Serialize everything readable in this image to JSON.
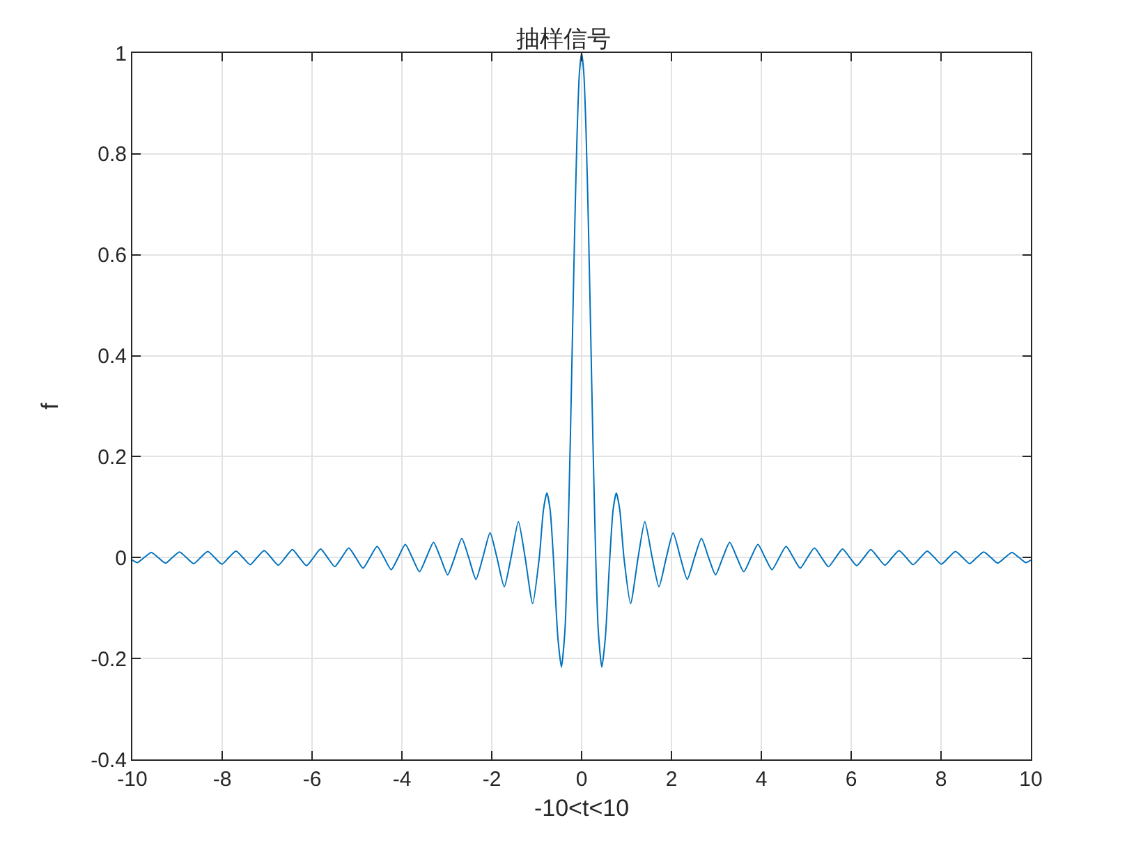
{
  "chart_data": {
    "type": "line",
    "title": "抽样信号",
    "xlabel": "-10<t<10",
    "ylabel": "f",
    "x": [
      -10,
      -9.891,
      -9.739,
      -9.577,
      -9.425,
      -9.263,
      -9.111,
      -8.949,
      -8.796,
      -8.635,
      -8.482,
      -8.321,
      -8.168,
      -8.007,
      -7.854,
      -7.693,
      -7.54,
      -7.379,
      -7.226,
      -7.065,
      -6.912,
      -6.751,
      -6.597,
      -6.437,
      -6.283,
      -6.123,
      -5.969,
      -5.809,
      -5.655,
      -5.495,
      -5.341,
      -5.181,
      -5.027,
      -4.866,
      -4.712,
      -4.552,
      -4.398,
      -4.238,
      -4.084,
      -3.924,
      -3.77,
      -3.61,
      -3.456,
      -3.296,
      -3.142,
      -2.981,
      -2.827,
      -2.667,
      -2.513,
      -2.352,
      -2.199,
      -2.037,
      -1.885,
      -1.722,
      -1.571,
      -1.407,
      -1.257,
      -1.09,
      -0.942,
      -0.85,
      -0.773,
      -0.7,
      -0.628,
      -0.53,
      -0.449,
      -0.37,
      -0.314,
      -0.25,
      -0.2,
      -0.15,
      -0.1,
      -0.05,
      0,
      0.05,
      0.1,
      0.15,
      0.2,
      0.25,
      0.314,
      0.37,
      0.449,
      0.53,
      0.628,
      0.7,
      0.773,
      0.85,
      0.942,
      1.09,
      1.257,
      1.407,
      1.571,
      1.722,
      1.885,
      2.037,
      2.199,
      2.352,
      2.513,
      2.667,
      2.827,
      2.981,
      3.142,
      3.296,
      3.456,
      3.61,
      3.77,
      3.924,
      4.084,
      4.238,
      4.398,
      4.552,
      4.712,
      4.866,
      5.027,
      5.181,
      5.341,
      5.495,
      5.655,
      5.809,
      5.969,
      6.123,
      6.283,
      6.437,
      6.597,
      6.751,
      6.912,
      7.065,
      7.226,
      7.379,
      7.54,
      7.693,
      7.854,
      8.007,
      8.168,
      8.321,
      8.482,
      8.635,
      8.796,
      8.949,
      9.111,
      9.263,
      9.425,
      9.577,
      9.739,
      9.891,
      10
    ],
    "series": [
      {
        "color": "#0072bd",
        "values": [
          -0.005,
          -0.01,
          0,
          0.01,
          0,
          -0.011,
          0,
          0.011,
          0,
          -0.012,
          0,
          0.012,
          0,
          -0.013,
          0,
          0.013,
          0,
          -0.014,
          0,
          0.014,
          0,
          -0.015,
          0,
          0.016,
          0,
          -0.016,
          0,
          0.017,
          0,
          -0.018,
          0,
          0.019,
          0,
          -0.021,
          0,
          0.022,
          0,
          -0.024,
          0,
          0.026,
          0,
          -0.028,
          0,
          0.03,
          0,
          -0.034,
          0,
          0.038,
          0,
          -0.043,
          0,
          0.049,
          0,
          -0.058,
          0,
          0.071,
          0,
          -0.091,
          0,
          0.094,
          0.128,
          0.094,
          0,
          -0.157,
          -0.217,
          -0.143,
          0,
          0.239,
          0.455,
          0.665,
          0.841,
          0.959,
          1,
          0.959,
          0.841,
          0.665,
          0.455,
          0.239,
          0,
          -0.143,
          -0.217,
          -0.157,
          0,
          0.094,
          0.128,
          0.094,
          0,
          -0.091,
          0,
          0.071,
          0,
          -0.058,
          0,
          0.049,
          0,
          -0.043,
          0,
          0.038,
          0,
          -0.034,
          0,
          0.03,
          0,
          -0.028,
          0,
          0.026,
          0,
          -0.024,
          0,
          0.022,
          0,
          -0.021,
          0,
          0.019,
          0,
          -0.018,
          0,
          0.017,
          0,
          -0.016,
          0,
          0.016,
          0,
          -0.015,
          0,
          0.014,
          0,
          -0.014,
          0,
          0.013,
          0,
          -0.013,
          0,
          0.012,
          0,
          -0.012,
          0,
          0.011,
          0,
          -0.011,
          0,
          0.01,
          0,
          -0.01,
          -0.005
        ]
      }
    ],
    "xlim": [
      -10,
      10
    ],
    "xticks": [
      -10,
      -8,
      -6,
      -4,
      -2,
      0,
      2,
      4,
      6,
      8,
      10
    ],
    "ylim": [
      -0.4,
      1
    ],
    "yticks": [
      -0.4,
      -0.2,
      0,
      0.2,
      0.4,
      0.6,
      0.8,
      1
    ],
    "grid": true,
    "legend": false
  }
}
